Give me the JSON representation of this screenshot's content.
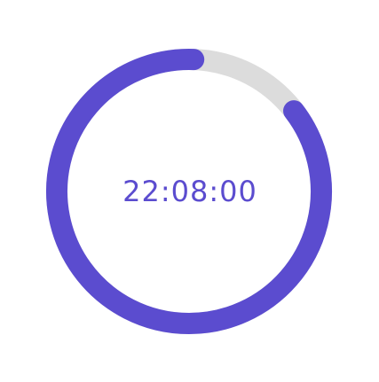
{
  "timer": {
    "time_text": "22:08:00",
    "progress_fraction": 0.86,
    "colors": {
      "progress": "#5b4ccf",
      "track": "#dcdcdc",
      "text": "#5b4ccf",
      "background": "#ffffff"
    }
  }
}
